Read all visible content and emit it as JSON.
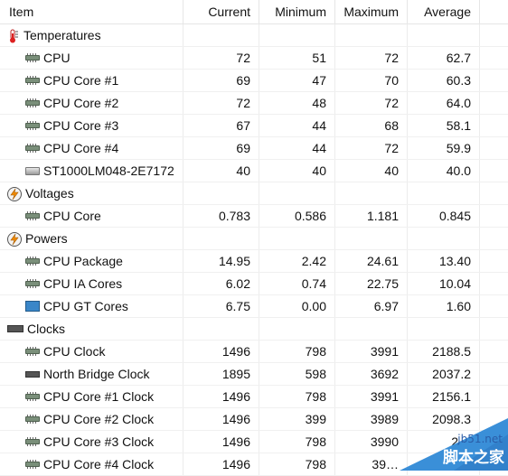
{
  "columns": {
    "item": "Item",
    "current": "Current",
    "minimum": "Minimum",
    "maximum": "Maximum",
    "average": "Average"
  },
  "groups": {
    "temperatures": {
      "label": "Temperatures",
      "icon": "thermometer-icon",
      "rows": [
        {
          "name": "CPU",
          "current": "72",
          "minimum": "51",
          "maximum": "72",
          "average": "62.7"
        },
        {
          "name": "CPU Core #1",
          "current": "69",
          "minimum": "47",
          "maximum": "70",
          "average": "60.3"
        },
        {
          "name": "CPU Core #2",
          "current": "72",
          "minimum": "48",
          "maximum": "72",
          "average": "64.0"
        },
        {
          "name": "CPU Core #3",
          "current": "67",
          "minimum": "44",
          "maximum": "68",
          "average": "58.1"
        },
        {
          "name": "CPU Core #4",
          "current": "69",
          "minimum": "44",
          "maximum": "72",
          "average": "59.9"
        },
        {
          "name": "ST1000LM048-2E7172",
          "current": "40",
          "minimum": "40",
          "maximum": "40",
          "average": "40.0"
        }
      ]
    },
    "voltages": {
      "label": "Voltages",
      "icon": "lightning-icon",
      "rows": [
        {
          "name": "CPU Core",
          "current": "0.783",
          "minimum": "0.586",
          "maximum": "1.181",
          "average": "0.845"
        }
      ]
    },
    "powers": {
      "label": "Powers",
      "icon": "lightning-icon",
      "rows": [
        {
          "name": "CPU Package",
          "current": "14.95",
          "minimum": "2.42",
          "maximum": "24.61",
          "average": "13.40"
        },
        {
          "name": "CPU IA Cores",
          "current": "6.02",
          "minimum": "0.74",
          "maximum": "22.75",
          "average": "10.04"
        },
        {
          "name": "CPU GT Cores",
          "current": "6.75",
          "minimum": "0.00",
          "maximum": "6.97",
          "average": "1.60"
        }
      ]
    },
    "clocks": {
      "label": "Clocks",
      "icon": "clock-chip-icon",
      "rows": [
        {
          "name": "CPU Clock",
          "current": "1496",
          "minimum": "798",
          "maximum": "3991",
          "average": "2188.5"
        },
        {
          "name": "North Bridge Clock",
          "current": "1895",
          "minimum": "598",
          "maximum": "3692",
          "average": "2037.2"
        },
        {
          "name": "CPU Core #1 Clock",
          "current": "1496",
          "minimum": "798",
          "maximum": "3991",
          "average": "2156.1"
        },
        {
          "name": "CPU Core #2 Clock",
          "current": "1496",
          "minimum": "399",
          "maximum": "3989",
          "average": "2098.3"
        },
        {
          "name": "CPU Core #3 Clock",
          "current": "1496",
          "minimum": "798",
          "maximum": "3990",
          "average": "2…"
        },
        {
          "name": "CPU Core #4 Clock",
          "current": "1496",
          "minimum": "798",
          "maximum": "39…",
          "average": ""
        }
      ]
    }
  },
  "watermark": {
    "url": "jb51.net",
    "text": "脚本之家"
  },
  "colors": {
    "watermark_blue": "#3a8fd8",
    "chip_green": "#7a8f7a"
  }
}
